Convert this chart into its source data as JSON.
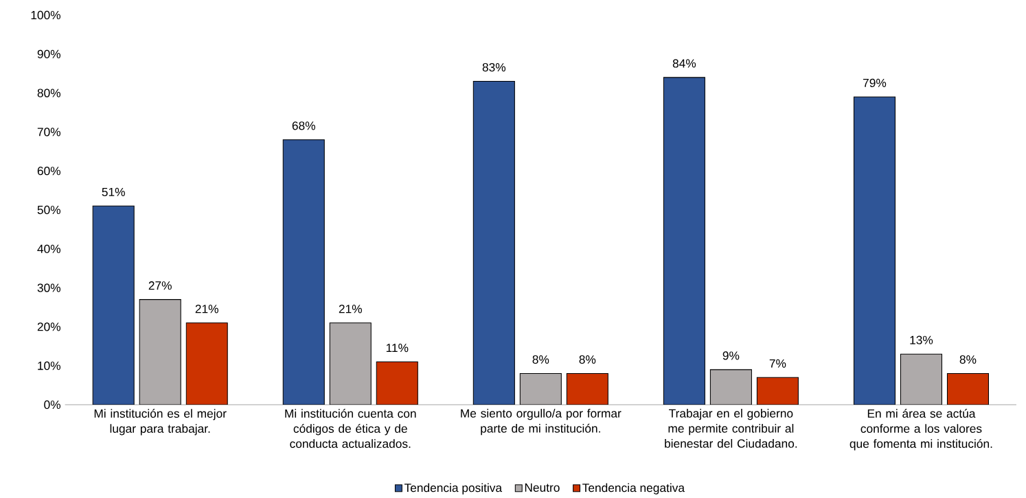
{
  "chart_data": {
    "type": "bar",
    "categories": [
      "Mi institución es el mejor lugar para trabajar.",
      "Mi institución cuenta con códigos de ética y de conducta actualizados.",
      "Me siento orgullo/a por formar parte de mi institución.",
      "Trabajar en el gobierno me permite contribuir al bienestar del Ciudadano.",
      "En mi área se actúa conforme a los valores que fomenta mi institución."
    ],
    "series": [
      {
        "name": "Tendencia positiva",
        "color": "#2f5597",
        "values": [
          51,
          68,
          83,
          84,
          79
        ],
        "value_labels": [
          "51%",
          "68%",
          "83%",
          "84%",
          "79%"
        ]
      },
      {
        "name": "Neutro",
        "color": "#aeaaaa",
        "values": [
          27,
          21,
          8,
          9,
          13
        ],
        "value_labels": [
          "27%",
          "21%",
          "8%",
          "9%",
          "13%"
        ]
      },
      {
        "name": "Tendencia negativa",
        "color": "#cc3300",
        "values": [
          21,
          11,
          8,
          7,
          8
        ],
        "value_labels": [
          "21%",
          "11%",
          "8%",
          "7%",
          "8%"
        ]
      }
    ],
    "ylim": [
      0,
      100
    ],
    "yticks": [
      {
        "value": 0,
        "label": "0%"
      },
      {
        "value": 10,
        "label": "10%"
      },
      {
        "value": 20,
        "label": "20%"
      },
      {
        "value": 30,
        "label": "30%"
      },
      {
        "value": 40,
        "label": "40%"
      },
      {
        "value": 50,
        "label": "50%"
      },
      {
        "value": 60,
        "label": "60%"
      },
      {
        "value": 70,
        "label": "70%"
      },
      {
        "value": 80,
        "label": "80%"
      },
      {
        "value": 90,
        "label": "90%"
      },
      {
        "value": 100,
        "label": "100%"
      }
    ],
    "grid": false,
    "legend": "bottom"
  }
}
